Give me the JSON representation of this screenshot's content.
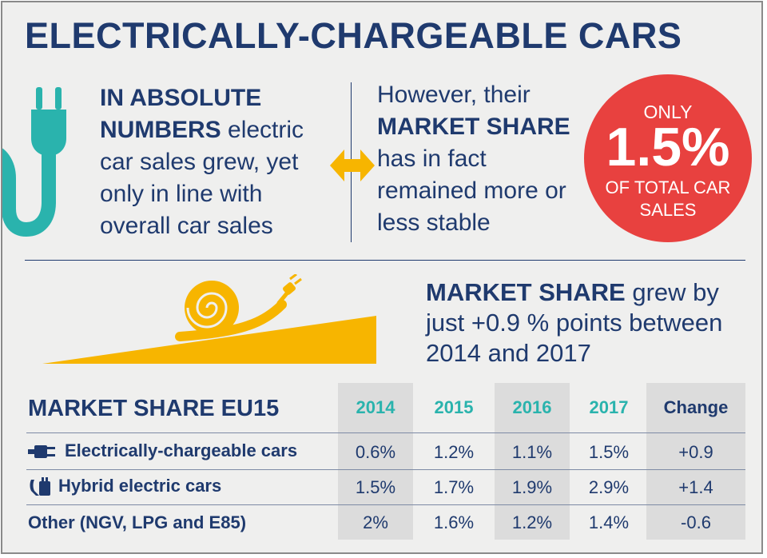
{
  "title": "ELECTRICALLY-CHARGEABLE CARS",
  "absolute": {
    "bold": "IN ABSOLUTE NUMBERS",
    "rest": " electric car sales grew, yet only in line with overall car sales"
  },
  "share": {
    "lead": "However, their ",
    "bold": "MARKET SHARE",
    "rest": " has in fact remained more or less stable"
  },
  "badge": {
    "top": "ONLY",
    "value": "1.5%",
    "bottom": "OF TOTAL CAR SALES"
  },
  "growth": {
    "bold": "MARKET SHARE",
    "rest": " grew by just +0.9 % points between 2014 and 2017"
  },
  "table": {
    "title": "MARKET SHARE EU15",
    "columns": [
      "2014",
      "2015",
      "2016",
      "2017",
      "Change"
    ],
    "rows": [
      {
        "label": "Electrically-chargeable cars",
        "icon": "plug-icon",
        "values": [
          "0.6%",
          "1.2%",
          "1.1%",
          "1.5%",
          "+0.9"
        ]
      },
      {
        "label": "Hybrid electric cars",
        "icon": "fuel-plug-icon",
        "values": [
          "1.5%",
          "1.7%",
          "1.9%",
          "2.9%",
          "+1.4"
        ]
      },
      {
        "label": "Other (NGV, LPG and E85)",
        "icon": "",
        "values": [
          "2%",
          "1.6%",
          "1.2%",
          "1.4%",
          "-0.6"
        ]
      }
    ]
  },
  "colors": {
    "navy": "#1f3a6e",
    "teal": "#2ab3ad",
    "red": "#e8413f",
    "yellow": "#f7b500",
    "background": "#efefee"
  }
}
